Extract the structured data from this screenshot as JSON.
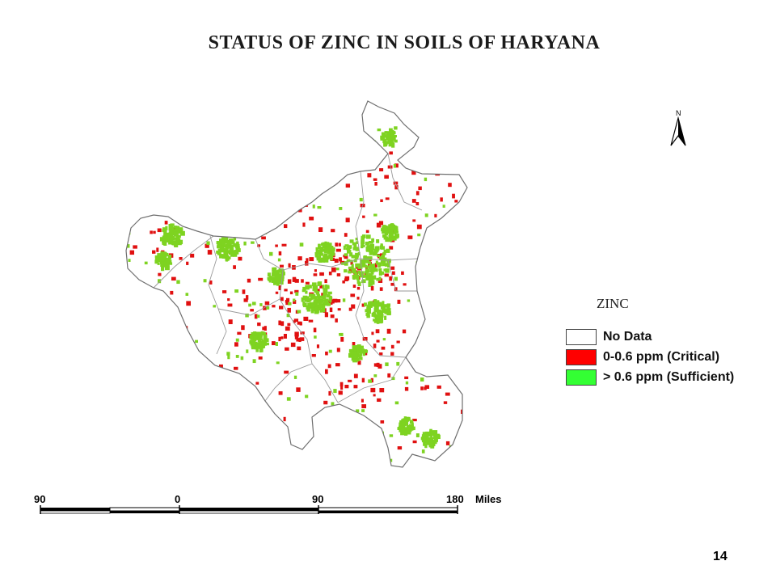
{
  "title": "STATUS OF ZINC IN SOILS OF HARYANA",
  "north_arrow": {
    "label": "N",
    "icon": "north-arrow-icon"
  },
  "legend": {
    "title": "ZINC",
    "items": [
      {
        "label": "No Data",
        "color": "#ffffff"
      },
      {
        "label": "0-0.6 ppm (Critical)",
        "color": "#ff0000"
      },
      {
        "label": "> 0.6 ppm (Sufficient)",
        "color": "#33ff33"
      }
    ]
  },
  "scale_bar": {
    "ticks": [
      "90",
      "0",
      "90",
      "180"
    ],
    "unit": "Miles"
  },
  "map_colors": {
    "critical": "#e01010",
    "sufficient": "#7ed321",
    "boundary": "#9a9a9a"
  },
  "page_number": "14"
}
